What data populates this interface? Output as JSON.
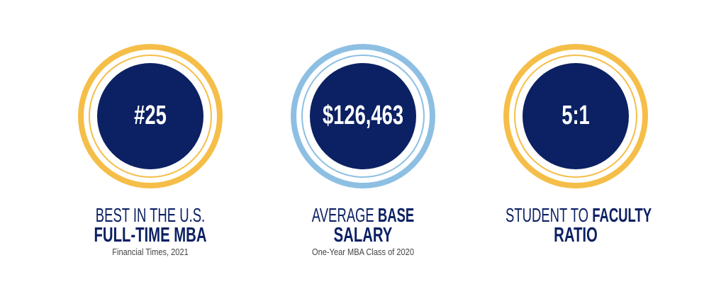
{
  "colors": {
    "gold": "#F5BE48",
    "navy": "#0C2163",
    "light_blue": "#8DBFE3"
  },
  "stats": [
    {
      "value": "#25",
      "line1_light": "BEST IN THE U.S.",
      "line1_bold": "",
      "line2": "FULL-TIME MBA",
      "source": "Financial Times, 2021"
    },
    {
      "value": "$126,463",
      "line1_light": "AVERAGE ",
      "line1_bold": "BASE",
      "line2": "SALARY",
      "source": "One-Year MBA Class of 2020"
    },
    {
      "value": "5:1",
      "line1_light": "STUDENT TO ",
      "line1_bold": "FACULTY",
      "line2": "RATIO",
      "source": ""
    }
  ]
}
